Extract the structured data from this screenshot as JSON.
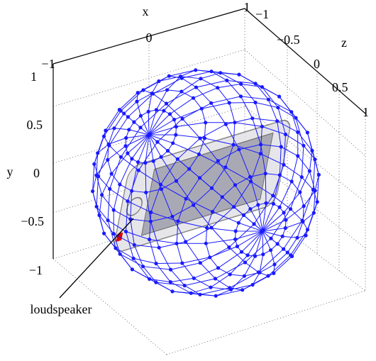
{
  "axes": {
    "x": {
      "label": "x",
      "ticks": [
        "−1",
        "0",
        "1"
      ]
    },
    "y": {
      "label": "y",
      "ticks": [
        "1",
        "0.5",
        "0",
        "−0.5",
        "−1"
      ]
    },
    "z": {
      "label": "z",
      "ticks": [
        "−1",
        "−0.5",
        "0",
        "0.5",
        "1"
      ]
    }
  },
  "annotation": "loudspeaker"
}
